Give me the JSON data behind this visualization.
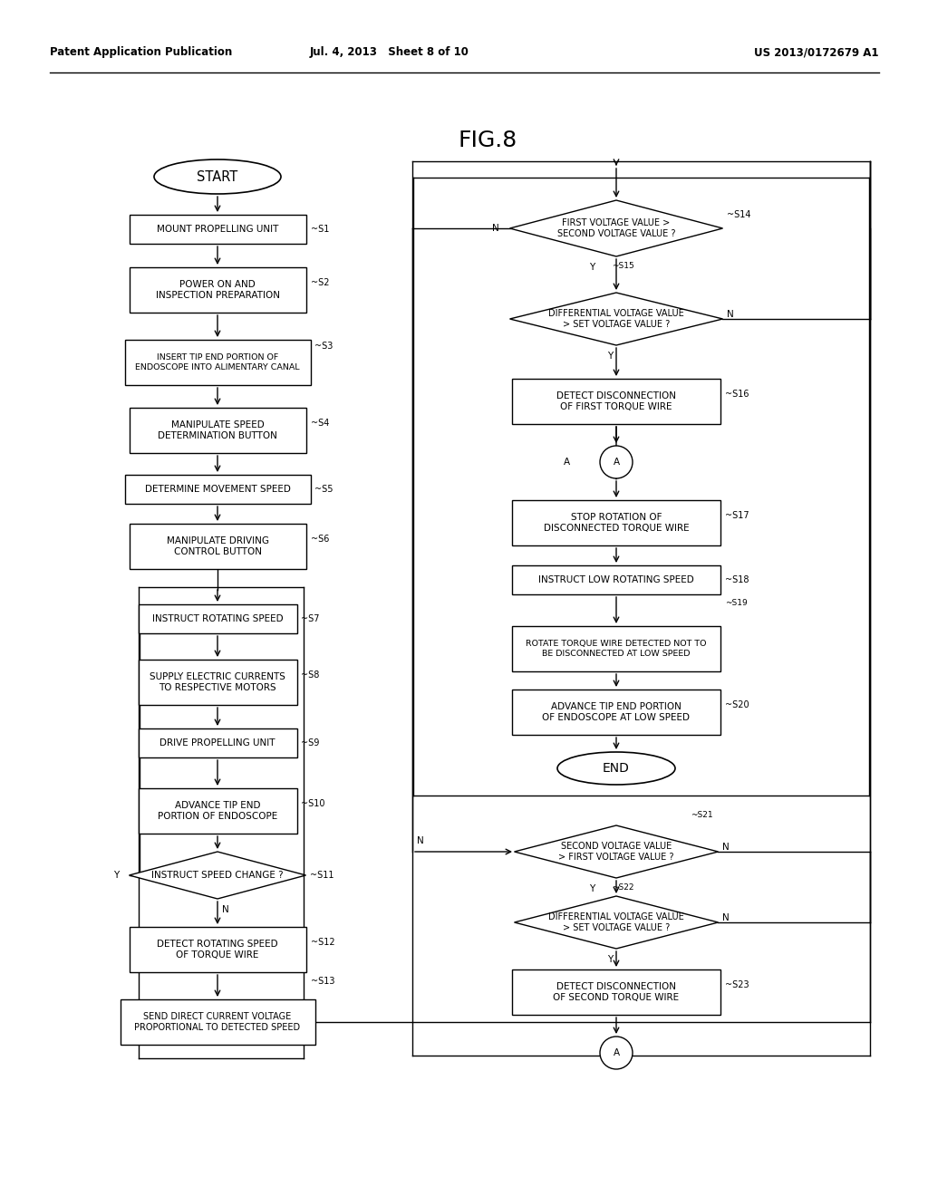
{
  "title": "FIG.8",
  "header_left": "Patent Application Publication",
  "header_mid": "Jul. 4, 2013   Sheet 8 of 10",
  "header_right": "US 2013/0172679 A1",
  "background": "#ffffff",
  "line_color": "#000000",
  "text_color": "#000000",
  "font_size": 7.0,
  "fig_width": 10.24,
  "fig_height": 13.2
}
